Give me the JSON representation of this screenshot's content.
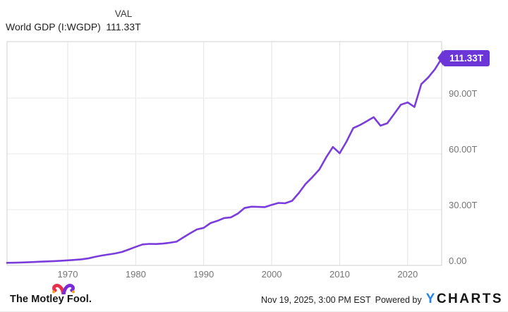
{
  "header": {
    "series_name": "World GDP (I:WGDP)",
    "val_label": "VAL",
    "val_value": "111.33T"
  },
  "badge": {
    "label": "111.33T"
  },
  "chart_data": {
    "type": "line",
    "series_name": "World GDP (I:WGDP)",
    "x": [
      1960,
      1961,
      1962,
      1963,
      1964,
      1965,
      1966,
      1967,
      1968,
      1969,
      1970,
      1971,
      1972,
      1973,
      1974,
      1975,
      1976,
      1977,
      1978,
      1979,
      1980,
      1981,
      1982,
      1983,
      1984,
      1985,
      1986,
      1987,
      1988,
      1989,
      1990,
      1991,
      1992,
      1993,
      1994,
      1995,
      1996,
      1997,
      1998,
      1999,
      2000,
      2001,
      2002,
      2003,
      2004,
      2005,
      2006,
      2007,
      2008,
      2009,
      2010,
      2011,
      2012,
      2013,
      2014,
      2015,
      2016,
      2017,
      2018,
      2019,
      2020,
      2021,
      2022,
      2023,
      2024
    ],
    "values": [
      1.39,
      1.44,
      1.55,
      1.67,
      1.83,
      2.0,
      2.17,
      2.3,
      2.49,
      2.74,
      2.96,
      3.27,
      3.77,
      4.59,
      5.31,
      5.9,
      6.44,
      7.26,
      8.57,
      9.98,
      11.28,
      11.6,
      11.49,
      11.73,
      12.18,
      12.75,
      15.05,
      17.26,
      19.35,
      20.19,
      22.77,
      23.97,
      25.47,
      25.86,
      27.82,
      30.89,
      31.6,
      31.47,
      31.35,
      32.57,
      33.62,
      33.44,
      34.75,
      38.98,
      43.89,
      47.54,
      51.53,
      58.06,
      63.71,
      60.35,
      66.61,
      73.88,
      75.54,
      77.61,
      79.74,
      75.2,
      76.48,
      81.42,
      86.46,
      87.69,
      85.26,
      97.53,
      101.0,
      105.44,
      111.33
    ],
    "last_value_label": "111.33T",
    "value_unit_suffix": "T",
    "ylim": [
      0,
      120
    ],
    "grid": true,
    "legend": "none",
    "y_ticks": [
      {
        "value": 90,
        "label": "90.00T"
      },
      {
        "value": 60,
        "label": "60.00T"
      },
      {
        "value": 30,
        "label": "30.00T"
      },
      {
        "value": 0,
        "label": "0.00"
      }
    ],
    "x_ticks": [
      {
        "year": 1970,
        "label": "1970"
      },
      {
        "year": 1980,
        "label": "1980"
      },
      {
        "year": 1990,
        "label": "1990"
      },
      {
        "year": 2000,
        "label": "2000"
      },
      {
        "year": 2010,
        "label": "2010"
      },
      {
        "year": 2020,
        "label": "2020"
      }
    ]
  },
  "colors": {
    "line": "#7a3ddb",
    "badge_bg": "#6b35d8",
    "grid_horizontal": "#eaeaea",
    "grid_vertical": "#e3e3e3",
    "plot_border": "#d2d2d2",
    "axis_text": "#757575",
    "fool_red": "#e8304c",
    "fool_purple": "#7c2bd9",
    "fool_gold": "#f6a21f",
    "ycharts_blue": "#2382ef"
  },
  "footer": {
    "brand": "The Motley Fool.",
    "date_text": "Nov 19, 2025, 3:00 PM EST",
    "powered_by": "Powered by",
    "ycharts_y": "Y",
    "ycharts_rest": "CHARTS"
  }
}
